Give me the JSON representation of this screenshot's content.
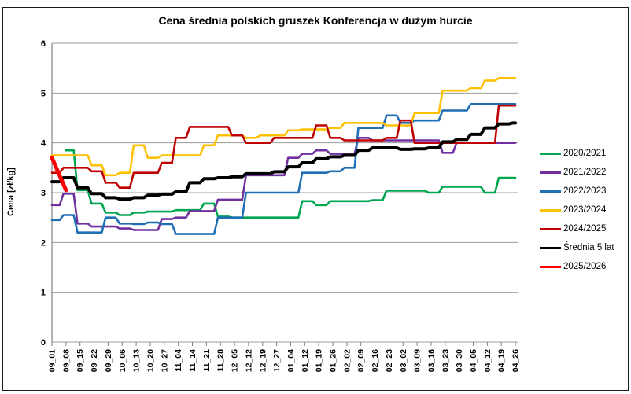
{
  "title": "Cena średnia polskich gruszek Konferencja w dużym hurcie",
  "y_axis": {
    "label": "Cena [zł/kg]",
    "ticks": [
      0,
      1,
      2,
      3,
      4,
      5,
      6
    ]
  },
  "chart_data": {
    "type": "line",
    "title": "Cena średnia polskich gruszek Konferencja w dużym hurcie",
    "xlabel": "",
    "ylabel": "Cena [zł/kg]",
    "ylim": [
      0,
      6
    ],
    "grid": true,
    "legend_position": "right",
    "x_labels": [
      "09_01",
      "09_08",
      "09_15",
      "09_22",
      "09_29",
      "10_06",
      "10_13",
      "10_20",
      "10_27",
      "11_04",
      "11_14",
      "11_21",
      "11_28",
      "12_05",
      "12_12",
      "12_19",
      "12_27",
      "01_04",
      "01_12",
      "01_19",
      "01_26",
      "02_02",
      "02_09",
      "02_16",
      "02_23",
      "03_02",
      "03_09",
      "03_16",
      "03_23",
      "03_30",
      "04_05",
      "04_12",
      "04_19",
      "04_26"
    ],
    "series": [
      {
        "name": "2020/2021",
        "color": "#00A550",
        "width": 2.6,
        "values": [
          null,
          3.85,
          3.05,
          2.78,
          2.6,
          2.55,
          2.6,
          2.62,
          2.62,
          2.65,
          2.65,
          2.78,
          2.52,
          2.5,
          2.5,
          2.5,
          2.5,
          2.5,
          2.83,
          2.75,
          2.83,
          2.83,
          2.83,
          2.85,
          3.04,
          3.04,
          3.04,
          3.0,
          3.12,
          3.12,
          3.12,
          3.0,
          3.3,
          3.3
        ]
      },
      {
        "name": "2021/2022",
        "color": "#7030A0",
        "width": 2.6,
        "values": [
          2.75,
          2.98,
          2.38,
          2.32,
          2.32,
          2.28,
          2.25,
          2.25,
          2.47,
          2.5,
          2.63,
          2.63,
          2.86,
          2.86,
          3.35,
          3.35,
          3.35,
          3.7,
          3.78,
          3.85,
          3.78,
          3.78,
          4.1,
          4.05,
          4.05,
          4.05,
          4.05,
          4.05,
          3.8,
          4.0,
          4.0,
          4.0,
          4.0,
          4.0
        ]
      },
      {
        "name": "2022/2023",
        "color": "#1F6FB5",
        "width": 2.6,
        "values": [
          2.45,
          2.55,
          2.2,
          2.2,
          2.5,
          2.38,
          2.37,
          2.4,
          2.37,
          2.17,
          2.17,
          2.17,
          2.5,
          2.5,
          3.0,
          3.0,
          3.0,
          3.0,
          3.4,
          3.4,
          3.43,
          3.5,
          4.3,
          4.3,
          4.55,
          4.4,
          4.45,
          4.45,
          4.65,
          4.65,
          4.78,
          4.78,
          4.78,
          4.78
        ]
      },
      {
        "name": "2023/2024",
        "color": "#FFC000",
        "width": 2.6,
        "values": [
          3.75,
          3.75,
          3.75,
          3.55,
          3.35,
          3.4,
          3.95,
          3.7,
          3.75,
          3.75,
          3.75,
          3.95,
          4.15,
          4.15,
          4.1,
          4.15,
          4.15,
          4.25,
          4.27,
          4.27,
          4.3,
          4.4,
          4.4,
          4.4,
          4.35,
          4.35,
          4.6,
          4.6,
          5.05,
          5.05,
          5.1,
          5.25,
          5.3,
          5.3
        ]
      },
      {
        "name": "2024/2025",
        "color": "#C00000",
        "width": 2.6,
        "values": [
          3.4,
          3.5,
          3.5,
          3.43,
          3.2,
          3.1,
          3.4,
          3.4,
          3.6,
          4.1,
          4.32,
          4.32,
          4.32,
          4.15,
          4.0,
          4.0,
          4.1,
          4.1,
          4.1,
          4.35,
          4.1,
          4.05,
          4.05,
          4.05,
          4.1,
          4.45,
          4.0,
          4.0,
          4.0,
          4.0,
          4.0,
          4.0,
          4.75,
          4.75
        ]
      },
      {
        "name": "Średnia 5 lat",
        "color": "#000000",
        "width": 4,
        "values": [
          3.22,
          3.3,
          3.1,
          2.98,
          2.9,
          2.87,
          2.9,
          2.95,
          2.97,
          3.02,
          3.2,
          3.28,
          3.3,
          3.32,
          3.38,
          3.38,
          3.42,
          3.52,
          3.6,
          3.68,
          3.72,
          3.75,
          3.85,
          3.9,
          3.9,
          3.87,
          3.88,
          3.9,
          4.02,
          4.07,
          4.17,
          4.3,
          4.38,
          4.4
        ]
      },
      {
        "name": "2025/2026",
        "color": "#FF0000",
        "width": 5,
        "values": [
          3.7,
          3.05,
          null,
          null,
          null,
          null,
          null,
          null,
          null,
          null,
          null,
          null,
          null,
          null,
          null,
          null,
          null,
          null,
          null,
          null,
          null,
          null,
          null,
          null,
          null,
          null,
          null,
          null,
          null,
          null,
          null,
          null,
          null,
          null
        ]
      }
    ],
    "colors": {
      "grid": "#9C9C9C",
      "axis": "#7F7F7F",
      "text": "#000000",
      "frame": "#1A1A1A"
    }
  }
}
